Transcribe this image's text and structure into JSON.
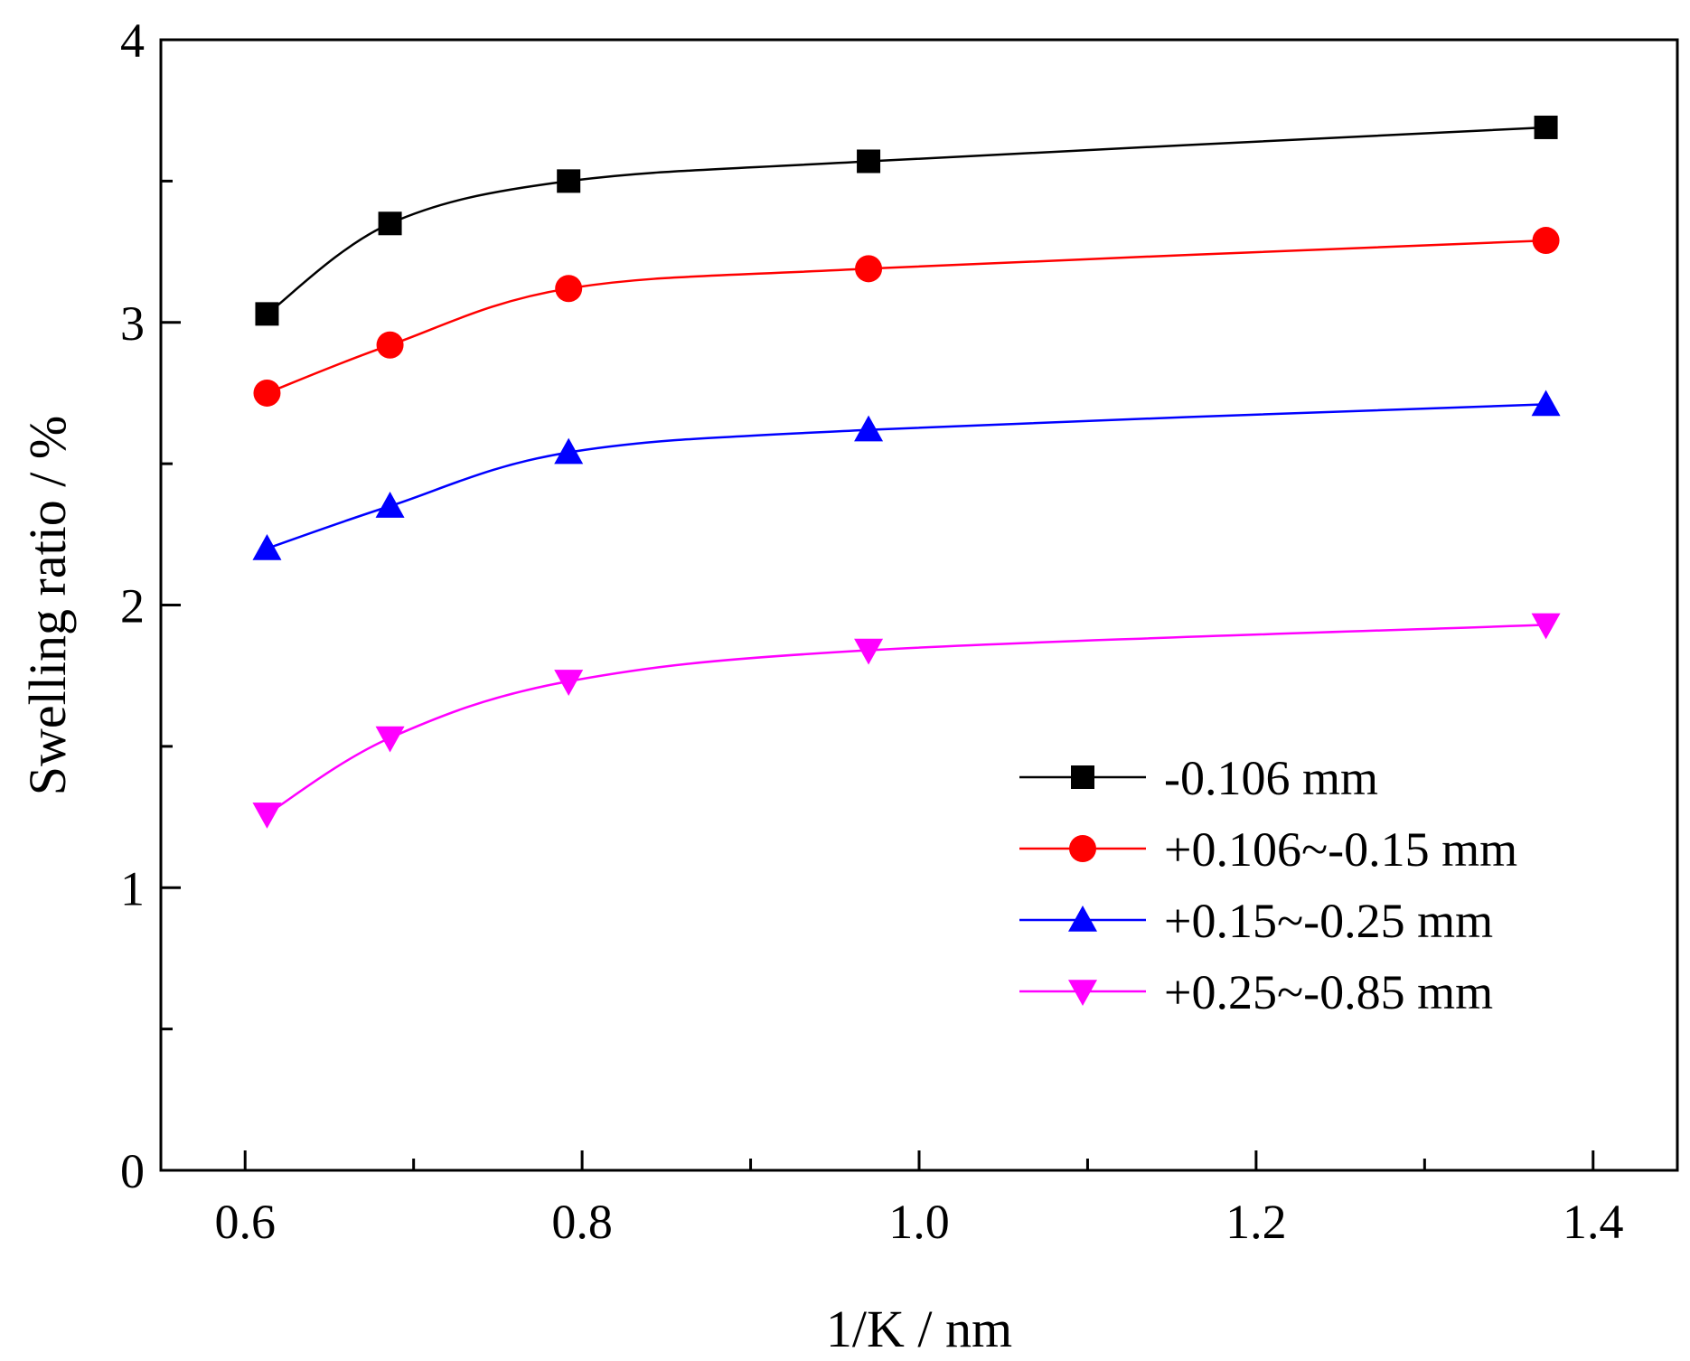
{
  "chart_data": {
    "type": "line",
    "title": "",
    "xlabel": "1/K / nm",
    "ylabel": "Swelling ratio / %",
    "xlim": [
      0.55,
      1.45
    ],
    "ylim": [
      0,
      4
    ],
    "xticks": [
      0.6,
      0.8,
      1.0,
      1.2,
      1.4
    ],
    "xtick_labels": [
      "0.6",
      "0.8",
      "1.0",
      "1.2",
      "1.4"
    ],
    "yticks": [
      0,
      1,
      2,
      3,
      4
    ],
    "ytick_labels": [
      "0",
      "1",
      "2",
      "3",
      "4"
    ],
    "grid": false,
    "legend_position": "bottom-right",
    "x": [
      0.613,
      0.686,
      0.792,
      0.97,
      1.372
    ],
    "series": [
      {
        "name": "-0.106 mm",
        "color": "#000000",
        "marker": "square",
        "values": [
          3.03,
          3.35,
          3.5,
          3.57,
          3.69
        ]
      },
      {
        "name": "+0.106~-0.15 mm",
        "color": "#ff0000",
        "marker": "circle",
        "values": [
          2.75,
          2.92,
          3.12,
          3.19,
          3.29
        ]
      },
      {
        "name": "+0.15~-0.25 mm",
        "color": "#0000ff",
        "marker": "triangle-up",
        "values": [
          2.2,
          2.35,
          2.54,
          2.62,
          2.71
        ]
      },
      {
        "name": "+0.25~-0.85 mm",
        "color": "#ff00ff",
        "marker": "triangle-down",
        "values": [
          1.26,
          1.53,
          1.73,
          1.84,
          1.93
        ]
      }
    ]
  }
}
